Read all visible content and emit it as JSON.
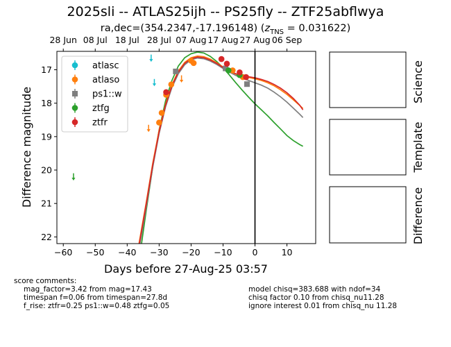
{
  "title_line1": "2025sli -- ATLAS25ijh -- PS25fly -- ZTF25abflwya",
  "title_line2_prefix": "ra,dec=(354.2347,-17.196148) (",
  "title_line2_z": "z",
  "title_line2_sub": "TNS",
  "title_line2_suffix": " = 0.031622)",
  "colors": {
    "atlasc": "#17becf",
    "atlaso": "#ff7f0e",
    "ps1w": "#7f7f7f",
    "ztfg": "#2ca02c",
    "ztfr": "#d62728"
  },
  "chart_data": {
    "type": "scatter",
    "xlabel": "Days before 27-Aug-25 03:57",
    "ylabel": "Difference magnitude",
    "xlim": [
      -62,
      19
    ],
    "ylim": [
      22.2,
      16.45
    ],
    "y_inverted": true,
    "xticks": [
      -60,
      -50,
      -40,
      -30,
      -20,
      -10,
      0,
      10
    ],
    "yticks": [
      17,
      18,
      19,
      20,
      21,
      22
    ],
    "top_axis_ticks": [
      {
        "x": -60,
        "label": "28 Jun"
      },
      {
        "x": -50,
        "label": "08 Jul"
      },
      {
        "x": -40,
        "label": "18 Jul"
      },
      {
        "x": -30,
        "label": "28 Jul"
      },
      {
        "x": -20,
        "label": "07 Aug"
      },
      {
        "x": -10,
        "label": "17 Aug"
      },
      {
        "x": 0,
        "label": "27 Aug"
      },
      {
        "x": 10,
        "label": "06 Sep"
      }
    ],
    "vertical_line_x": 0,
    "legend_position": "upper-left",
    "series": [
      {
        "name": "atlasc",
        "marker": "circle",
        "points": [],
        "upper_limits": [
          [
            -32.5,
            16.65
          ],
          [
            -31.5,
            17.38
          ]
        ]
      },
      {
        "name": "atlaso",
        "marker": "circle",
        "points": [
          [
            -30.0,
            18.58
          ],
          [
            -29.2,
            18.29
          ],
          [
            -27.8,
            17.75
          ],
          [
            -26.2,
            17.44
          ],
          [
            -20.0,
            16.73
          ],
          [
            -19.2,
            16.8
          ],
          [
            -7.0,
            17.02
          ],
          [
            -3.8,
            17.22
          ]
        ],
        "upper_limits": [
          [
            -33.3,
            18.75
          ],
          [
            -23.0,
            17.27
          ]
        ]
      },
      {
        "name": "ps1::w",
        "marker": "square",
        "points": [
          [
            -24.8,
            17.05
          ],
          [
            -9.2,
            16.96
          ],
          [
            -2.5,
            17.43
          ]
        ],
        "upper_limits": []
      },
      {
        "name": "ztfg",
        "marker": "circle",
        "points": [
          [
            -8.3,
            17.02
          ],
          [
            -4.8,
            17.16
          ]
        ],
        "upper_limits": [
          [
            -56.8,
            20.2
          ]
        ]
      },
      {
        "name": "ztfr",
        "marker": "circle",
        "points": [
          [
            -27.8,
            17.67
          ],
          [
            -10.5,
            16.68
          ],
          [
            -8.8,
            16.82
          ],
          [
            -4.8,
            17.08
          ],
          [
            -2.8,
            17.22
          ]
        ],
        "upper_limits": []
      }
    ],
    "model_curves": [
      {
        "name": "ztfg",
        "points": [
          [
            -35.5,
            22.2
          ],
          [
            -34.0,
            21.19
          ],
          [
            -32.0,
            19.91
          ],
          [
            -30.0,
            18.79
          ],
          [
            -28.0,
            17.93
          ],
          [
            -26.0,
            17.32
          ],
          [
            -24.0,
            16.89
          ],
          [
            -22.0,
            16.64
          ],
          [
            -20.0,
            16.52
          ],
          [
            -18.0,
            16.47
          ],
          [
            -16.0,
            16.5
          ],
          [
            -14.0,
            16.6
          ],
          [
            -12.0,
            16.75
          ],
          [
            -10.0,
            16.94
          ],
          [
            -8.0,
            17.16
          ],
          [
            -6.0,
            17.39
          ],
          [
            -4.0,
            17.61
          ],
          [
            -2.0,
            17.82
          ],
          [
            0.0,
            18.02
          ],
          [
            2.0,
            18.2
          ],
          [
            4.0,
            18.38
          ],
          [
            6.0,
            18.58
          ],
          [
            8.0,
            18.77
          ],
          [
            10.0,
            18.97
          ],
          [
            12.0,
            19.12
          ],
          [
            14.0,
            19.24
          ],
          [
            15.0,
            19.29
          ]
        ]
      },
      {
        "name": "ps1::w",
        "points": [
          [
            -36.0,
            22.2
          ],
          [
            -34.0,
            21.1
          ],
          [
            -32.0,
            19.92
          ],
          [
            -30.0,
            18.9
          ],
          [
            -28.0,
            18.11
          ],
          [
            -26.0,
            17.53
          ],
          [
            -24.0,
            17.12
          ],
          [
            -22.0,
            16.85
          ],
          [
            -20.0,
            16.7
          ],
          [
            -18.0,
            16.65
          ],
          [
            -16.0,
            16.67
          ],
          [
            -14.0,
            16.74
          ],
          [
            -12.0,
            16.84
          ],
          [
            -10.0,
            16.96
          ],
          [
            -8.0,
            17.07
          ],
          [
            -6.0,
            17.17
          ],
          [
            -4.0,
            17.25
          ],
          [
            -2.0,
            17.32
          ],
          [
            0.0,
            17.39
          ],
          [
            2.0,
            17.46
          ],
          [
            4.0,
            17.55
          ],
          [
            6.0,
            17.67
          ],
          [
            8.0,
            17.81
          ],
          [
            10.0,
            17.97
          ],
          [
            12.0,
            18.15
          ],
          [
            14.0,
            18.33
          ],
          [
            15.0,
            18.43
          ]
        ]
      },
      {
        "name": "atlaso",
        "points": [
          [
            -36.3,
            22.2
          ],
          [
            -34.0,
            20.95
          ],
          [
            -32.0,
            19.8
          ],
          [
            -30.0,
            18.8
          ],
          [
            -28.0,
            18.03
          ],
          [
            -26.0,
            17.45
          ],
          [
            -24.0,
            17.04
          ],
          [
            -22.0,
            16.78
          ],
          [
            -20.0,
            16.64
          ],
          [
            -18.0,
            16.59
          ],
          [
            -16.0,
            16.61
          ],
          [
            -14.0,
            16.68
          ],
          [
            -12.0,
            16.79
          ],
          [
            -10.0,
            16.92
          ],
          [
            -8.0,
            17.04
          ],
          [
            -6.0,
            17.13
          ],
          [
            -4.0,
            17.19
          ],
          [
            -2.0,
            17.23
          ],
          [
            0.0,
            17.27
          ],
          [
            2.0,
            17.32
          ],
          [
            4.0,
            17.39
          ],
          [
            6.0,
            17.48
          ],
          [
            8.0,
            17.6
          ],
          [
            10.0,
            17.74
          ],
          [
            12.0,
            17.9
          ],
          [
            14.0,
            18.07
          ],
          [
            15.0,
            18.16
          ]
        ]
      },
      {
        "name": "ztfr",
        "points": [
          [
            -36.2,
            22.2
          ],
          [
            -34.0,
            21.0
          ],
          [
            -32.0,
            19.85
          ],
          [
            -30.0,
            18.85
          ],
          [
            -28.0,
            18.06
          ],
          [
            -26.0,
            17.48
          ],
          [
            -24.0,
            17.07
          ],
          [
            -22.0,
            16.81
          ],
          [
            -20.0,
            16.67
          ],
          [
            -18.0,
            16.62
          ],
          [
            -16.0,
            16.64
          ],
          [
            -14.0,
            16.71
          ],
          [
            -12.0,
            16.81
          ],
          [
            -10.0,
            16.93
          ],
          [
            -8.0,
            17.04
          ],
          [
            -6.0,
            17.12
          ],
          [
            -4.0,
            17.17
          ],
          [
            -2.0,
            17.21
          ],
          [
            0.0,
            17.24
          ],
          [
            2.0,
            17.29
          ],
          [
            4.0,
            17.35
          ],
          [
            6.0,
            17.44
          ],
          [
            8.0,
            17.55
          ],
          [
            10.0,
            17.69
          ],
          [
            12.0,
            17.86
          ],
          [
            14.0,
            18.06
          ],
          [
            15.0,
            18.2
          ]
        ]
      }
    ]
  },
  "stamps": {
    "science_label": "Science",
    "template_label": "Template",
    "difference_label": "Difference"
  },
  "comments": {
    "header": "score comments:",
    "left": [
      "mag_factor=3.42 from mag=17.43",
      "timespan f=0.06 from timespan=27.8d",
      "f_rise: ztfr=0.25 ps1::w=0.48 ztfg=0.05"
    ],
    "right": [
      "model chisq=383.688 with ndof=34",
      "chisq factor 0.10 from chisq_nu11.28",
      "ignore interest 0.01 from chisq_nu 11.28"
    ]
  }
}
